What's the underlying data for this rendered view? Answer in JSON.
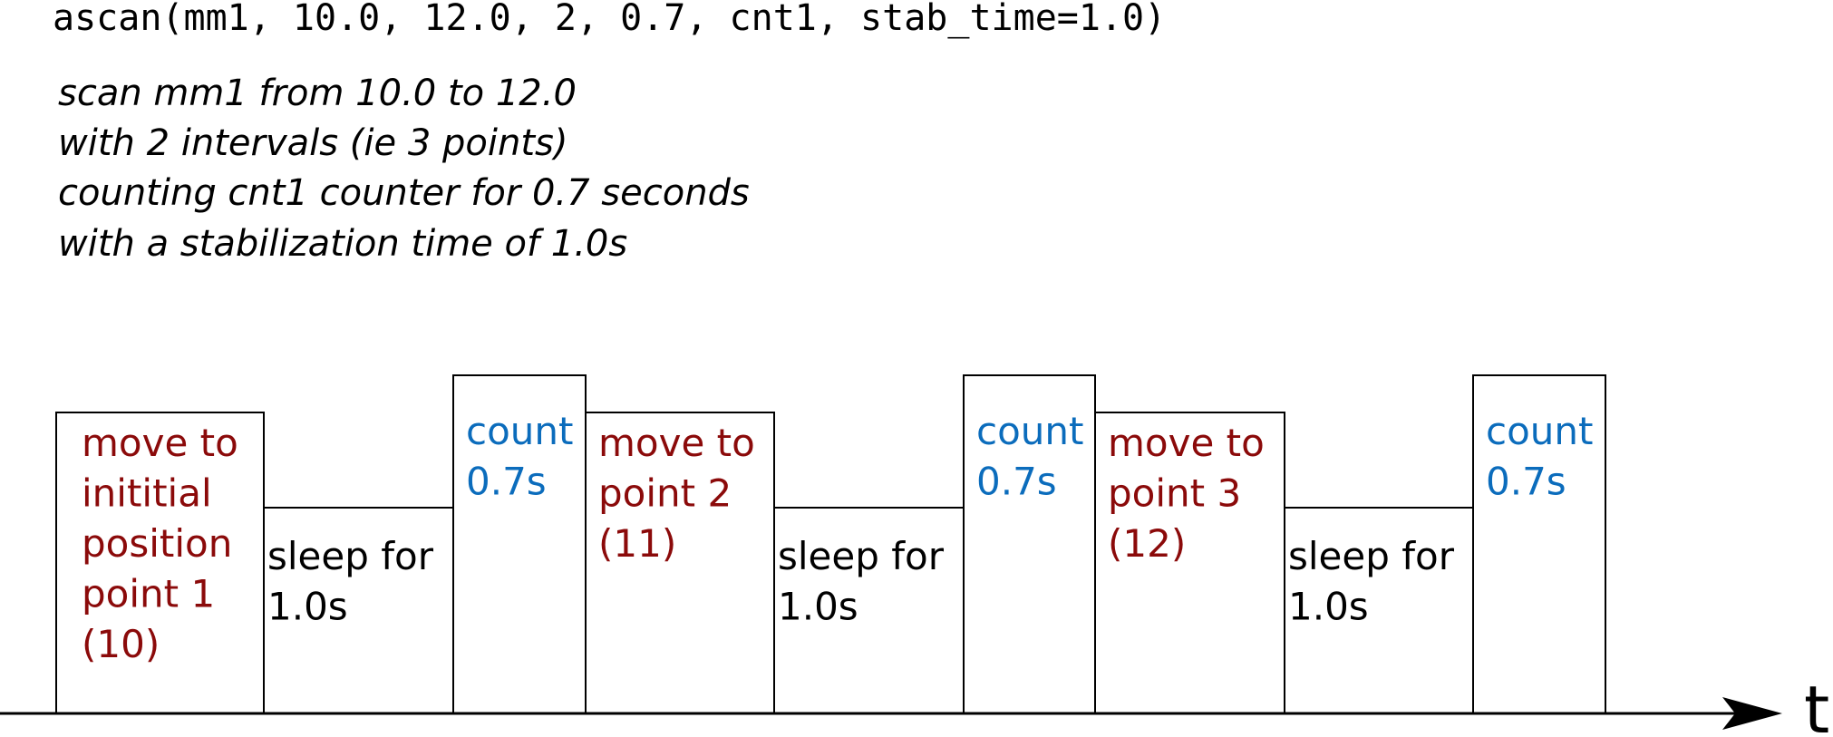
{
  "code": "ascan(mm1, 10.0, 12.0, 2, 0.7, cnt1, stab_time=1.0)",
  "description": [
    "scan mm1 from 10.0 to 12.0",
    "with 2 intervals (ie 3 points)",
    "counting cnt1 counter for 0.7 seconds",
    "with a stabilization time of 1.0s"
  ],
  "timeline": {
    "steps": [
      {
        "lines": [
          "move to",
          "inititial",
          "position",
          "point 1",
          "(10)"
        ]
      },
      {
        "lines": [
          "sleep for",
          "1.0s"
        ]
      },
      {
        "lines": [
          "count",
          "0.7s"
        ]
      },
      {
        "lines": [
          "move to",
          "point 2",
          "(11)"
        ]
      },
      {
        "lines": [
          "sleep for",
          "1.0s"
        ]
      },
      {
        "lines": [
          "count",
          "0.7s"
        ]
      },
      {
        "lines": [
          "move to",
          "point 3",
          "(12)"
        ]
      },
      {
        "lines": [
          "sleep for",
          "1.0s"
        ]
      },
      {
        "lines": [
          "count",
          "0.7s"
        ]
      }
    ],
    "axis_label": "t"
  }
}
